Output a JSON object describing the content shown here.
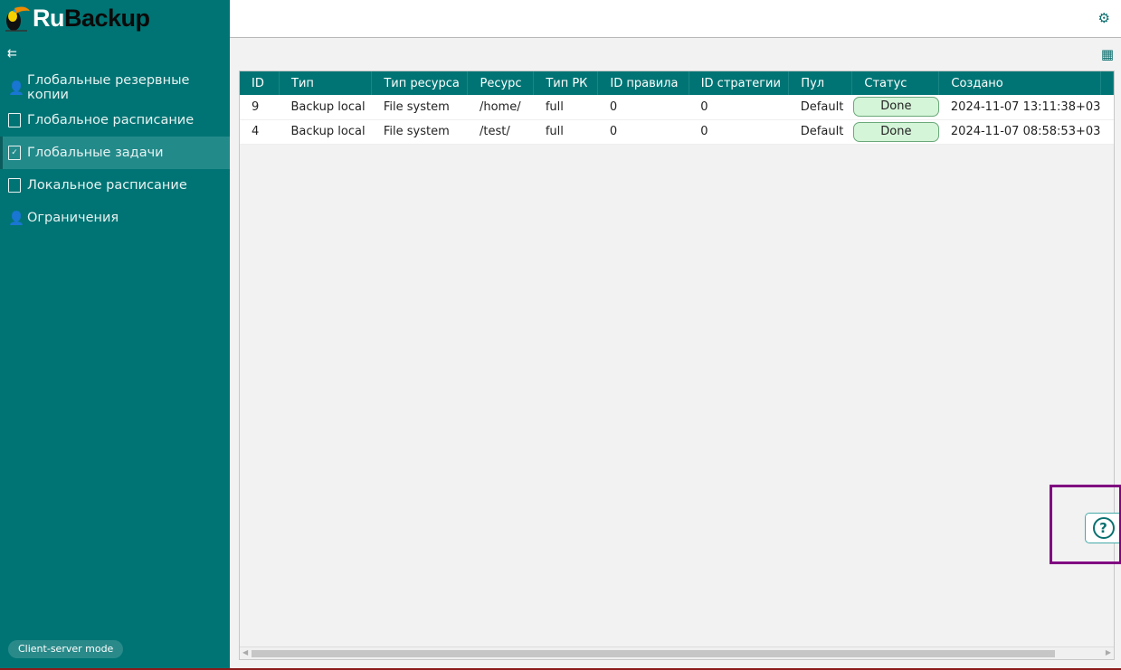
{
  "app": {
    "logo_ru": "Ru",
    "logo_backup": "Backup",
    "mode_label": "Client-server mode"
  },
  "sidebar": {
    "items": [
      {
        "label": "Глобальные резервные копии",
        "icon": "person-gear-icon"
      },
      {
        "label": "Глобальное расписание",
        "icon": "document-icon"
      },
      {
        "label": "Глобальные задачи",
        "icon": "checklist-icon",
        "active": true
      },
      {
        "label": "Локальное расписание",
        "icon": "document-icon"
      },
      {
        "label": "Ограничения",
        "icon": "person-gear-icon"
      }
    ]
  },
  "table": {
    "columns": [
      "ID",
      "Тип",
      "Тип ресурса",
      "Ресурс",
      "Тип РК",
      "ID правила",
      "ID стратегии",
      "Пул",
      "Статус",
      "Создано"
    ],
    "rows": [
      [
        "9",
        "Backup local",
        "File system",
        "/home/",
        "full",
        "0",
        "0",
        "Default",
        "Done",
        "2024-11-07 13:11:38+03"
      ],
      [
        "4",
        "Backup local",
        "File system",
        "/test/",
        "full",
        "0",
        "0",
        "Default",
        "Done",
        "2024-11-07 08:58:53+03"
      ]
    ]
  },
  "colors": {
    "accent": "#007474",
    "status_done": "#d5f5d8",
    "highlight": "#800080"
  }
}
